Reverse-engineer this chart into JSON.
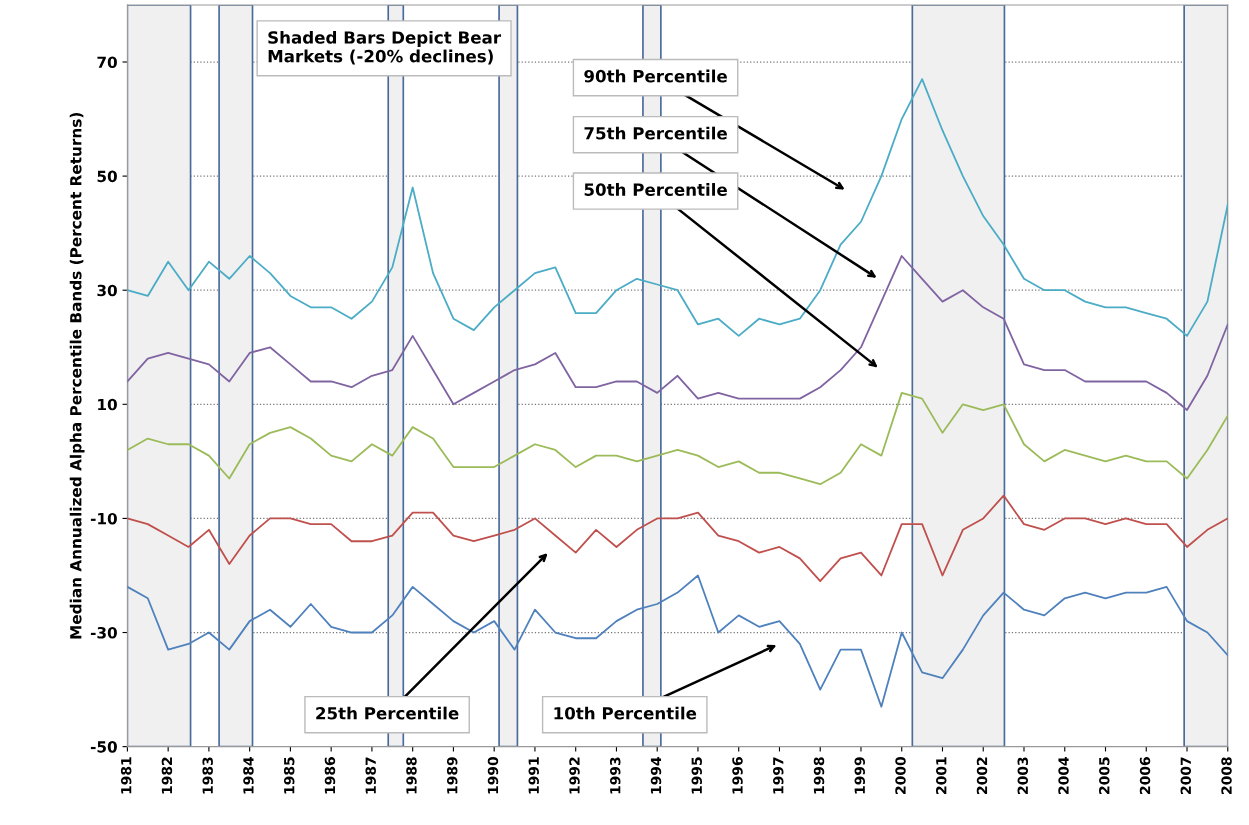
{
  "chart_data": {
    "type": "line",
    "ylabel": "Median Annualized Alpha Percentile Bands (Percent Returns)",
    "x": [
      1981.0,
      1981.5,
      1982.0,
      1982.5,
      1983.0,
      1983.5,
      1984.0,
      1984.5,
      1985.0,
      1985.5,
      1986.0,
      1986.5,
      1987.0,
      1987.5,
      1988.0,
      1988.5,
      1989.0,
      1989.5,
      1990.0,
      1990.5,
      1991.0,
      1991.5,
      1992.0,
      1992.5,
      1993.0,
      1993.5,
      1994.0,
      1994.5,
      1995.0,
      1995.5,
      1996.0,
      1996.5,
      1997.0,
      1997.5,
      1998.0,
      1998.5,
      1999.0,
      1999.5,
      2000.0,
      2000.5,
      2001.0,
      2001.5,
      2002.0,
      2002.5,
      2003.0,
      2003.5,
      2004.0,
      2004.5,
      2005.0,
      2005.5,
      2006.0,
      2006.5,
      2007.0,
      2007.5,
      2008.0
    ],
    "series": [
      {
        "color": "#4bacc6",
        "values": [
          30,
          29,
          35,
          30,
          35,
          32,
          36,
          33,
          29,
          27,
          27,
          25,
          28,
          34,
          48,
          33,
          25,
          23,
          27,
          30,
          33,
          34,
          26,
          26,
          30,
          32,
          31,
          30,
          24,
          25,
          22,
          25,
          24,
          25,
          30,
          38,
          42,
          50,
          60,
          67,
          58,
          50,
          43,
          38,
          32,
          30,
          30,
          28,
          27,
          27,
          26,
          25,
          22,
          28,
          45
        ]
      },
      {
        "color": "#8064a2",
        "values": [
          14,
          18,
          19,
          18,
          17,
          14,
          19,
          20,
          17,
          14,
          14,
          13,
          15,
          16,
          22,
          16,
          10,
          12,
          14,
          16,
          17,
          19,
          13,
          13,
          14,
          14,
          12,
          15,
          11,
          12,
          11,
          11,
          11,
          11,
          13,
          16,
          20,
          28,
          36,
          32,
          28,
          30,
          27,
          25,
          17,
          16,
          16,
          14,
          14,
          14,
          14,
          12,
          9,
          15,
          24
        ]
      },
      {
        "color": "#9bbb59",
        "values": [
          2,
          4,
          3,
          3,
          1,
          -3,
          3,
          5,
          6,
          4,
          1,
          0,
          3,
          1,
          6,
          4,
          -1,
          -1,
          -1,
          1,
          3,
          2,
          -1,
          1,
          1,
          0,
          1,
          2,
          1,
          -1,
          0,
          -2,
          -2,
          -3,
          -4,
          -2,
          3,
          1,
          12,
          11,
          5,
          10,
          9,
          10,
          3,
          0,
          2,
          1,
          0,
          1,
          0,
          0,
          -3,
          2,
          8
        ]
      },
      {
        "color": "#c0504d",
        "values": [
          -10,
          -11,
          -13,
          -15,
          -12,
          -18,
          -13,
          -10,
          -10,
          -11,
          -11,
          -14,
          -14,
          -13,
          -9,
          -9,
          -13,
          -14,
          -13,
          -12,
          -10,
          -13,
          -16,
          -12,
          -15,
          -12,
          -10,
          -10,
          -9,
          -13,
          -14,
          -16,
          -15,
          -17,
          -21,
          -17,
          -16,
          -20,
          -11,
          -11,
          -20,
          -12,
          -10,
          -6,
          -11,
          -12,
          -10,
          -10,
          -11,
          -10,
          -11,
          -11,
          -15,
          -12,
          -10
        ]
      },
      {
        "color": "#4f81bd",
        "values": [
          -22,
          -24,
          -33,
          -32,
          -30,
          -33,
          -28,
          -26,
          -29,
          -25,
          -29,
          -30,
          -30,
          -27,
          -22,
          -25,
          -28,
          -30,
          -28,
          -33,
          -26,
          -30,
          -31,
          -31,
          -28,
          -26,
          -25,
          -23,
          -20,
          -30,
          -27,
          -29,
          -28,
          -32,
          -40,
          -33,
          -33,
          -43,
          -30,
          -37,
          -38,
          -33,
          -27,
          -23,
          -26,
          -27,
          -24,
          -23,
          -24,
          -23,
          -23,
          -22,
          -28,
          -30,
          -34
        ]
      }
    ],
    "xlim": [
      1981,
      2008
    ],
    "xticks": [
      1981,
      1982,
      1983,
      1984,
      1985,
      1986,
      1987,
      1988,
      1989,
      1990,
      1991,
      1992,
      1993,
      1994,
      1995,
      1996,
      1997,
      1998,
      1999,
      2000,
      2001,
      2002,
      2003,
      2004,
      2005,
      2006,
      2007,
      2008
    ],
    "ylim": [
      -50,
      80
    ],
    "yticks": [
      -50,
      -30,
      -10,
      10,
      30,
      50,
      70
    ],
    "grid": "y",
    "bands": [
      {
        "axis": "x",
        "from": 1981.0,
        "to": 1982.55,
        "color": "#f0f0f0"
      },
      {
        "axis": "x",
        "from": 1983.25,
        "to": 1984.07,
        "color": "#f0f0f0"
      },
      {
        "axis": "x",
        "from": 1987.4,
        "to": 1987.77,
        "color": "#f0f0f0"
      },
      {
        "axis": "x",
        "from": 1990.12,
        "to": 1990.57,
        "color": "#f0f0f0"
      },
      {
        "axis": "x",
        "from": 1993.65,
        "to": 1994.09,
        "color": "#f0f0f0"
      },
      {
        "axis": "x",
        "from": 2000.26,
        "to": 2002.52,
        "color": "#f0f0f0"
      },
      {
        "axis": "x",
        "from": 2006.93,
        "to": 2008.0,
        "color": "#f0f0f0"
      }
    ],
    "annotations": [
      "Shaded Bars Depict Bear\nMarkets (-20% declines)",
      "90th Percentile",
      "75th Percentile",
      "50th Percentile",
      "25th Percentile",
      "10th Percentile"
    ]
  }
}
